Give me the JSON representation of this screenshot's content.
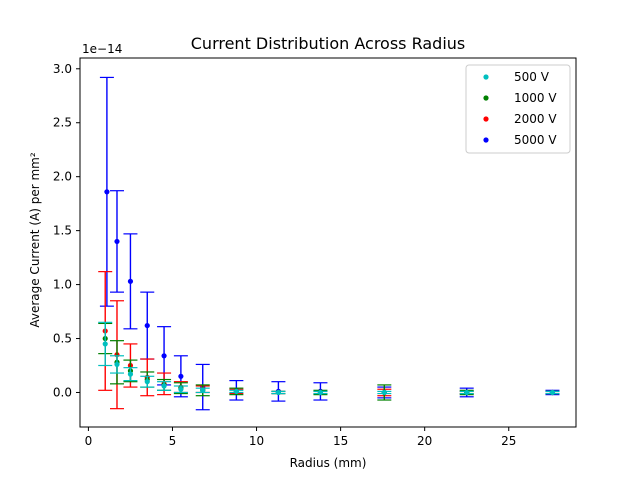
{
  "chart_data": {
    "type": "scatter",
    "title": "Current Distribution Across Radius",
    "xlabel": "Radius (mm)",
    "ylabel": "Average Current (A) per mm²",
    "y_offset_label": "1e−14",
    "xlim": [
      -0.5,
      29
    ],
    "ylim": [
      -0.32,
      3.1
    ],
    "y_scale_note": "values in units of 1e-14",
    "xticks": [
      0,
      5,
      10,
      15,
      20,
      25
    ],
    "yticks": [
      0.0,
      0.5,
      1.0,
      1.5,
      2.0,
      2.5,
      3.0
    ],
    "ytick_labels": [
      "0.0",
      "0.5",
      "1.0",
      "1.5",
      "2.0",
      "2.5",
      "3.0"
    ],
    "legend_position": "top-right",
    "grid": false,
    "series": [
      {
        "name": "5000 V",
        "color": "#0000ff",
        "x": [
          1.1,
          1.7,
          2.5,
          3.5,
          4.5,
          5.5,
          6.8,
          8.8,
          11.3,
          13.8,
          17.6,
          22.5,
          27.6
        ],
        "y": [
          1.86,
          1.4,
          1.03,
          0.62,
          0.34,
          0.15,
          0.05,
          0.02,
          0.01,
          0.01,
          0.0,
          0.0,
          0.0
        ],
        "err": [
          1.06,
          0.47,
          0.44,
          0.31,
          0.27,
          0.19,
          0.21,
          0.09,
          0.09,
          0.08,
          0.05,
          0.04,
          0.02
        ]
      },
      {
        "name": "2000 V",
        "color": "#ff0000",
        "x": [
          1.0,
          1.7,
          2.5,
          3.5,
          4.5,
          5.5,
          6.8,
          8.8,
          11.3,
          13.8,
          17.6,
          22.5,
          27.6
        ],
        "y": [
          0.57,
          0.35,
          0.25,
          0.14,
          0.08,
          0.05,
          0.03,
          0.01,
          0.0,
          0.0,
          0.0,
          0.0,
          0.0
        ],
        "err": [
          0.55,
          0.5,
          0.2,
          0.17,
          0.1,
          0.05,
          0.03,
          0.02,
          0.01,
          0.01,
          0.03,
          0.01,
          0.01
        ]
      },
      {
        "name": "1000 V",
        "color": "#008000",
        "x": [
          1.0,
          1.7,
          2.5,
          3.5,
          4.5,
          5.5,
          6.8,
          8.8,
          11.3,
          13.8,
          17.6,
          22.5,
          27.6
        ],
        "y": [
          0.5,
          0.28,
          0.2,
          0.12,
          0.07,
          0.04,
          0.02,
          0.01,
          0.0,
          0.0,
          0.0,
          0.0,
          0.0
        ],
        "err": [
          0.14,
          0.2,
          0.1,
          0.07,
          0.05,
          0.05,
          0.05,
          0.03,
          0.01,
          0.02,
          0.07,
          0.02,
          0.01
        ]
      },
      {
        "name": " 500 V",
        "color": "#00bfbf",
        "x": [
          1.0,
          1.7,
          2.5,
          3.5,
          4.5,
          5.5,
          6.8,
          8.8,
          11.3,
          13.8,
          17.6,
          22.5,
          27.6
        ],
        "y": [
          0.45,
          0.26,
          0.17,
          0.1,
          0.06,
          0.03,
          0.02,
          0.01,
          0.0,
          0.0,
          0.0,
          0.0,
          0.0
        ],
        "err": [
          0.2,
          0.08,
          0.06,
          0.05,
          0.04,
          0.03,
          0.02,
          0.01,
          0.01,
          0.01,
          0.01,
          0.01,
          0.01
        ]
      }
    ],
    "legend_order": [
      " 500 V",
      "1000 V",
      "2000 V",
      "5000 V"
    ]
  }
}
